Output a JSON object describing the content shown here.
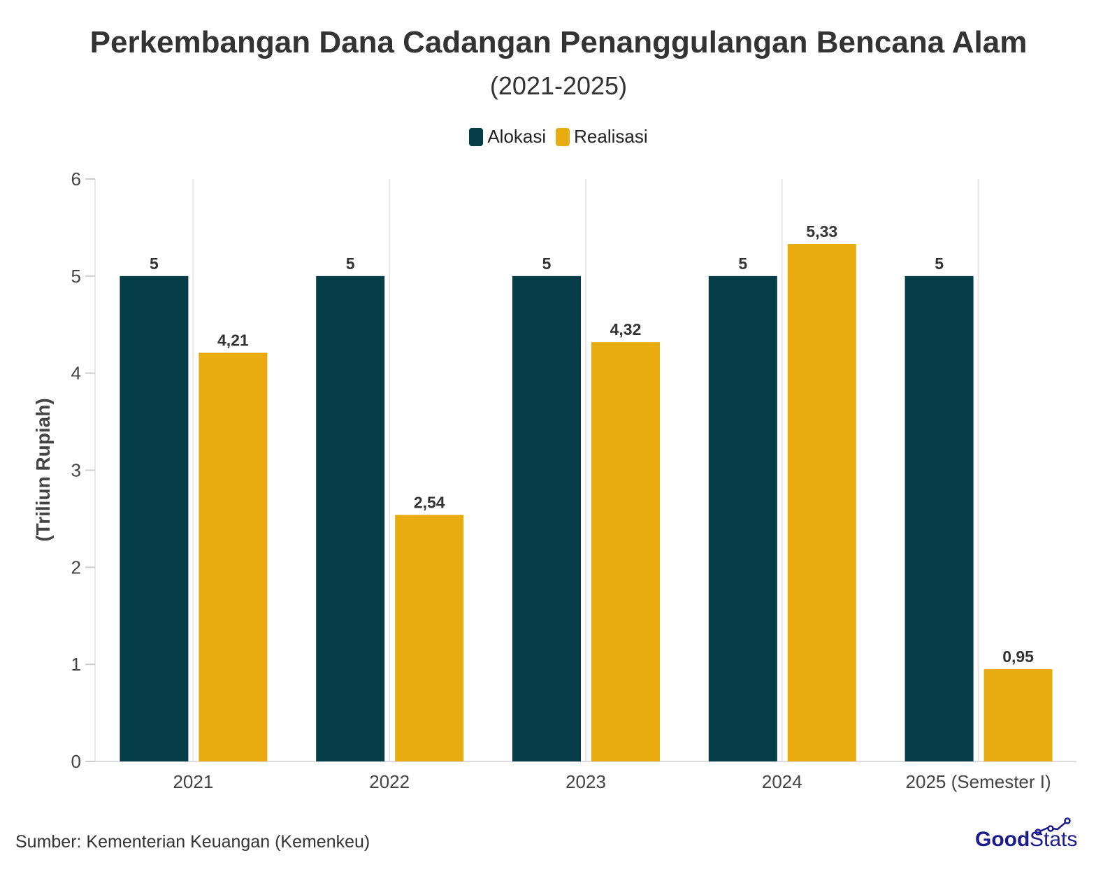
{
  "chart_data": {
    "type": "bar",
    "title": "Perkembangan Dana Cadangan Penanggulangan Bencana Alam",
    "subtitle": "(2021-2025)",
    "ylabel": "(Triliun Rupiah)",
    "xlabel": "",
    "categories": [
      "2021",
      "2022",
      "2023",
      "2024",
      "2025 (Semester I)"
    ],
    "series": [
      {
        "name": "Alokasi",
        "color": "#043c48",
        "values": [
          5,
          5,
          5,
          5,
          5
        ],
        "labels": [
          "5",
          "5",
          "5",
          "5",
          "5"
        ]
      },
      {
        "name": "Realisasi",
        "color": "#e8ab10",
        "values": [
          4.21,
          2.54,
          4.32,
          5.33,
          0.95
        ],
        "labels": [
          "4,21",
          "2,54",
          "4,32",
          "5,33",
          "0,95"
        ]
      }
    ],
    "ylim": [
      0,
      6
    ],
    "yticks": [
      "0",
      "1",
      "2",
      "3",
      "4",
      "5",
      "6"
    ],
    "grid": "vertical",
    "legend": "top-center"
  },
  "source": "Sumber: Kementerian Keuangan (Kemenkeu)",
  "logo": {
    "text": "GoodStats",
    "color": "#1a1a8c"
  }
}
